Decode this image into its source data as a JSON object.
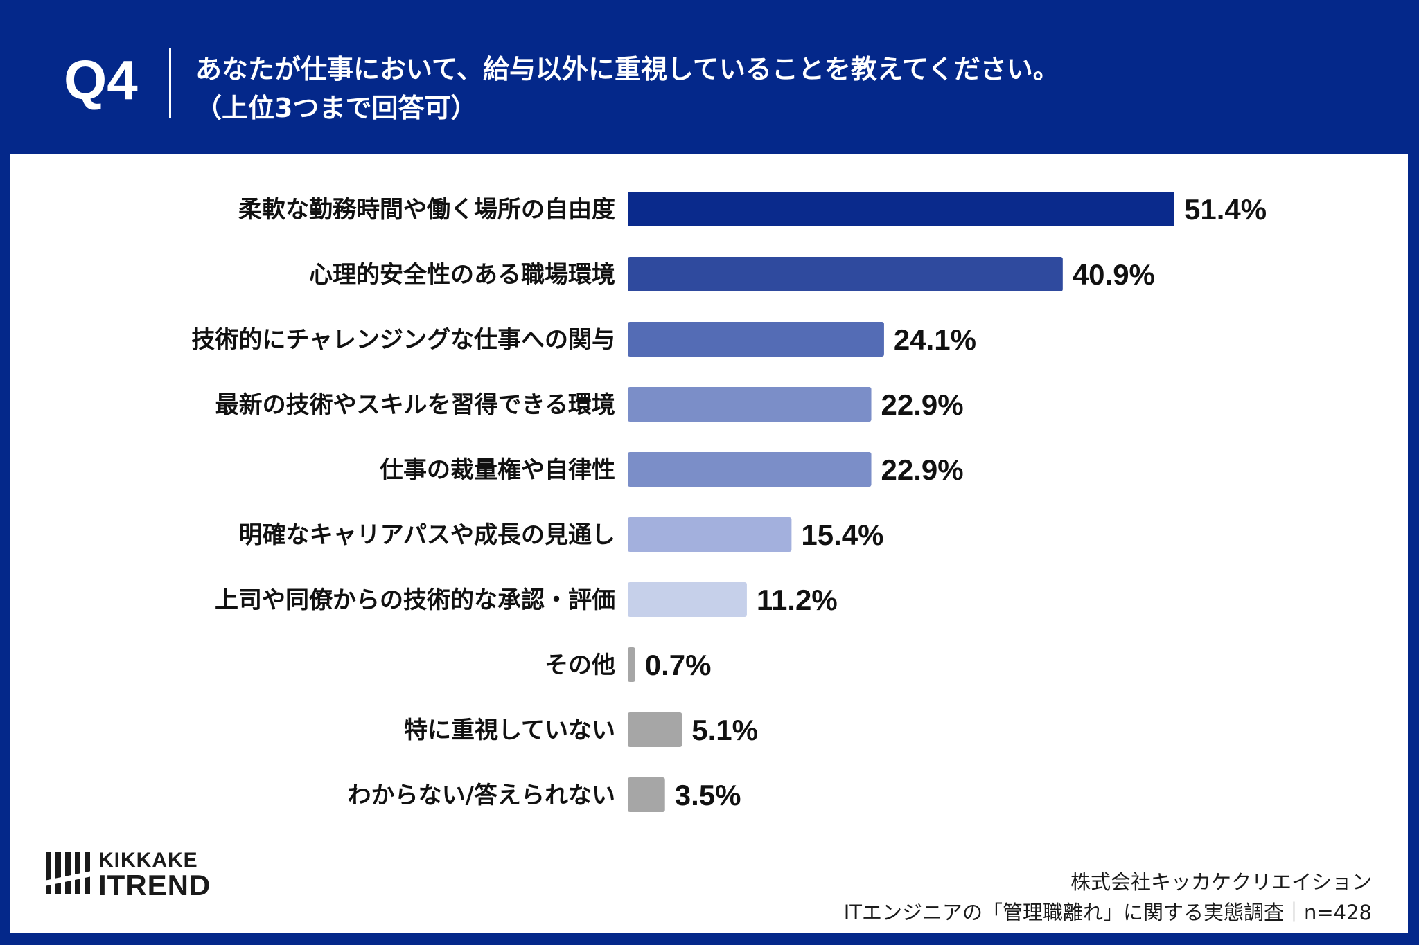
{
  "header": {
    "question_number": "Q4",
    "question_line1": "あなたが仕事において、給与以外に重視していることを教えてください。",
    "question_line2": "（上位3つまで回答可）"
  },
  "colors": {
    "background": "#04288a",
    "bar_colors": [
      "#0a2a8c",
      "#2f4a9e",
      "#546cb5",
      "#7b8ec8",
      "#7b8ec8",
      "#a3b0dd",
      "#c6d0ea",
      "#a6a6a6",
      "#a6a6a6",
      "#a6a6a6"
    ]
  },
  "chart_data": {
    "type": "bar",
    "orientation": "horizontal",
    "categories": [
      "柔軟な勤務時間や働く場所の自由度",
      "心理的安全性のある職場環境",
      "技術的にチャレンジングな仕事への関与",
      "最新の技術やスキルを習得できる環境",
      "仕事の裁量権や自律性",
      "明確なキャリアパスや成長の見通し",
      "上司や同僚からの技術的な承認・評価",
      "その他",
      "特に重視していない",
      "わからない/答えられない"
    ],
    "values": [
      51.4,
      40.9,
      24.1,
      22.9,
      22.9,
      15.4,
      11.2,
      0.7,
      5.1,
      3.5
    ],
    "value_labels": [
      "51.4%",
      "40.9%",
      "24.1%",
      "22.9%",
      "22.9%",
      "15.4%",
      "11.2%",
      "0.7%",
      "5.1%",
      "3.5%"
    ],
    "unit": "%",
    "xlim": [
      0,
      60
    ],
    "grid": false,
    "legend": "none"
  },
  "logo": {
    "line1": "KIKKAKE",
    "line2": "ITREND"
  },
  "source": {
    "line1": "株式会社キッカケクリエイション",
    "line2": "ITエンジニアの「管理職離れ」に関する実態調査｜n=428"
  }
}
